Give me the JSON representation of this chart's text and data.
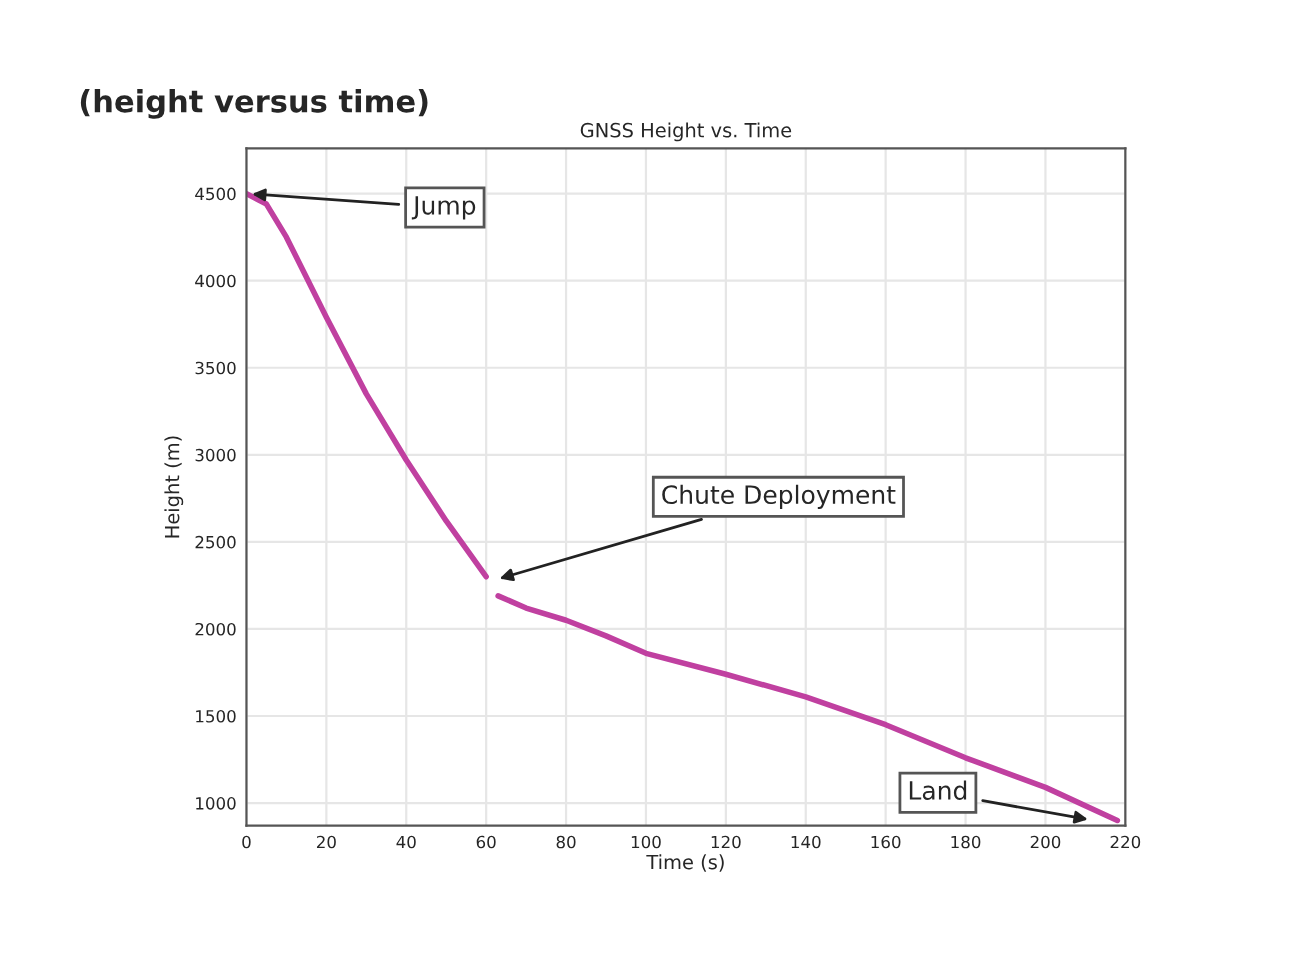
{
  "chart_data": {
    "type": "line",
    "title": "(height versus time)",
    "subtitle": "GNSS Height vs. Time",
    "xlabel": "Time (s)",
    "ylabel": "Height (m)",
    "x": [
      0,
      5,
      10,
      20,
      30,
      40,
      50,
      60,
      61.5,
      63,
      70,
      80,
      90,
      100,
      120,
      140,
      160,
      180,
      200,
      218
    ],
    "series": [
      {
        "color": "#c040a0",
        "values": [
          4500,
          4440,
          4250,
          3790,
          3350,
          2970,
          2620,
          2300,
          null,
          2190,
          2120,
          2050,
          1960,
          1860,
          1740,
          1610,
          1450,
          1260,
          1090,
          900
        ]
      }
    ],
    "xlim": [
      0,
      220
    ],
    "xticks": [
      0,
      20,
      40,
      60,
      80,
      100,
      120,
      140,
      160,
      180,
      200,
      220
    ],
    "ylim": [
      870,
      4760
    ],
    "yticks": [
      1000,
      1500,
      2000,
      2500,
      3000,
      3500,
      4000,
      4500
    ],
    "grid": true,
    "marker": "none",
    "line_style": "solid",
    "annotations": [
      {
        "text": "Jump",
        "x": 0,
        "y": 4500
      },
      {
        "text": "Chute Deployment",
        "x": 62,
        "y": 2280
      },
      {
        "text": "Land",
        "x": 212,
        "y": 900
      }
    ]
  }
}
